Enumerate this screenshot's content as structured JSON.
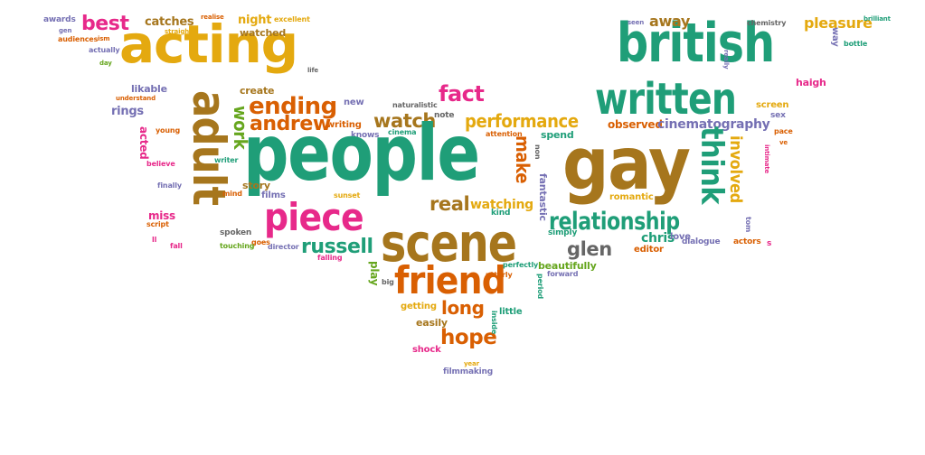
{
  "palette": {
    "gold": "#e4a90f",
    "teal": "#1f9e78",
    "brown": "#a6761d",
    "orange": "#d95f02",
    "pink": "#e7298a",
    "purple": "#7570b3",
    "green": "#66a61e",
    "gray": "#666666"
  },
  "words": [
    {
      "text": "acting",
      "color": "gold"
    },
    {
      "text": "best",
      "color": "pink"
    },
    {
      "text": "awards",
      "color": "purple"
    },
    {
      "text": "catches",
      "color": "brown"
    },
    {
      "text": "night",
      "color": "gold"
    },
    {
      "text": "excellent",
      "color": "gold"
    },
    {
      "text": "realise",
      "color": "orange"
    },
    {
      "text": "straight",
      "color": "gold"
    },
    {
      "text": "watched",
      "color": "brown"
    },
    {
      "text": "gen",
      "color": "purple"
    },
    {
      "text": "audiences",
      "color": "orange"
    },
    {
      "text": "ism",
      "color": "orange"
    },
    {
      "text": "actually",
      "color": "purple"
    },
    {
      "text": "day",
      "color": "green"
    },
    {
      "text": "life",
      "color": "gray"
    },
    {
      "text": "likable",
      "color": "purple"
    },
    {
      "text": "create",
      "color": "brown"
    },
    {
      "text": "understand",
      "color": "orange"
    },
    {
      "text": "rings",
      "color": "purple"
    },
    {
      "text": "adult",
      "color": "brown"
    },
    {
      "text": "ending",
      "color": "orange"
    },
    {
      "text": "new",
      "color": "purple"
    },
    {
      "text": "naturalistic",
      "color": "gray"
    },
    {
      "text": "fact",
      "color": "pink"
    },
    {
      "text": "andrew",
      "color": "orange"
    },
    {
      "text": "work",
      "color": "green"
    },
    {
      "text": "writing",
      "color": "orange"
    },
    {
      "text": "knows",
      "color": "purple"
    },
    {
      "text": "watch",
      "color": "brown"
    },
    {
      "text": "note",
      "color": "gray"
    },
    {
      "text": "cinema",
      "color": "teal"
    },
    {
      "text": "performance",
      "color": "gold"
    },
    {
      "text": "attention",
      "color": "orange"
    },
    {
      "text": "acted",
      "color": "pink"
    },
    {
      "text": "young",
      "color": "orange"
    },
    {
      "text": "believe",
      "color": "pink"
    },
    {
      "text": "writer",
      "color": "teal"
    },
    {
      "text": "people",
      "color": "teal"
    },
    {
      "text": "finally",
      "color": "purple"
    },
    {
      "text": "story",
      "color": "brown"
    },
    {
      "text": "mind",
      "color": "orange"
    },
    {
      "text": "films",
      "color": "purple"
    },
    {
      "text": "sunset",
      "color": "gold"
    },
    {
      "text": "miss",
      "color": "pink"
    },
    {
      "text": "script",
      "color": "orange"
    },
    {
      "text": "piece",
      "color": "pink"
    },
    {
      "text": "real",
      "color": "brown"
    },
    {
      "text": "watching",
      "color": "gold"
    },
    {
      "text": "kind",
      "color": "teal"
    },
    {
      "text": "make",
      "color": "orange"
    },
    {
      "text": "spend",
      "color": "teal"
    },
    {
      "text": "fantastic",
      "color": "purple"
    },
    {
      "text": "non",
      "color": "gray"
    },
    {
      "text": "spoken",
      "color": "gray"
    },
    {
      "text": "goes",
      "color": "orange"
    },
    {
      "text": "fall",
      "color": "pink"
    },
    {
      "text": "touching",
      "color": "green"
    },
    {
      "text": "director",
      "color": "purple"
    },
    {
      "text": "falling",
      "color": "pink"
    },
    {
      "text": "scene",
      "color": "brown"
    },
    {
      "text": "simply",
      "color": "teal"
    },
    {
      "text": "russell",
      "color": "teal"
    },
    {
      "text": "friend",
      "color": "orange"
    },
    {
      "text": "play",
      "color": "green"
    },
    {
      "text": "big",
      "color": "gray"
    },
    {
      "text": "perfectly",
      "color": "teal"
    },
    {
      "text": "period",
      "color": "teal"
    },
    {
      "text": "forward",
      "color": "purple"
    },
    {
      "text": "utterly",
      "color": "orange"
    },
    {
      "text": "glen",
      "color": "gray"
    },
    {
      "text": "beautifully",
      "color": "green"
    },
    {
      "text": "long",
      "color": "orange"
    },
    {
      "text": "getting",
      "color": "gold"
    },
    {
      "text": "easily",
      "color": "brown"
    },
    {
      "text": "hope",
      "color": "orange"
    },
    {
      "text": "inside",
      "color": "teal"
    },
    {
      "text": "little",
      "color": "teal"
    },
    {
      "text": "shock",
      "color": "pink"
    },
    {
      "text": "year",
      "color": "gold"
    },
    {
      "text": "filmmaking",
      "color": "purple"
    },
    {
      "text": "british",
      "color": "teal"
    },
    {
      "text": "seen",
      "color": "purple"
    },
    {
      "text": "away",
      "color": "brown"
    },
    {
      "text": "chemistry",
      "color": "gray"
    },
    {
      "text": "pleasure",
      "color": "gold"
    },
    {
      "text": "brilliant",
      "color": "teal"
    },
    {
      "text": "way",
      "color": "purple"
    },
    {
      "text": "bottle",
      "color": "teal"
    },
    {
      "text": "written",
      "color": "teal"
    },
    {
      "text": "really",
      "color": "purple"
    },
    {
      "text": "screen",
      "color": "gold"
    },
    {
      "text": "haigh",
      "color": "pink"
    },
    {
      "text": "observed",
      "color": "orange"
    },
    {
      "text": "cinematography",
      "color": "purple"
    },
    {
      "text": "sex",
      "color": "purple"
    },
    {
      "text": "gay",
      "color": "brown"
    },
    {
      "text": "involved",
      "color": "gold"
    },
    {
      "text": "think",
      "color": "teal"
    },
    {
      "text": "pace",
      "color": "orange"
    },
    {
      "text": "ve",
      "color": "orange"
    },
    {
      "text": "relationship",
      "color": "teal"
    },
    {
      "text": "romantic",
      "color": "gold"
    },
    {
      "text": "chris",
      "color": "teal"
    },
    {
      "text": "love",
      "color": "purple"
    },
    {
      "text": "dialogue",
      "color": "purple"
    },
    {
      "text": "actors",
      "color": "orange"
    },
    {
      "text": "intimate",
      "color": "pink"
    },
    {
      "text": "tom",
      "color": "purple"
    },
    {
      "text": "editor",
      "color": "orange"
    },
    {
      "text": "s",
      "color": "pink"
    },
    {
      "text": "ll",
      "color": "pink"
    }
  ]
}
